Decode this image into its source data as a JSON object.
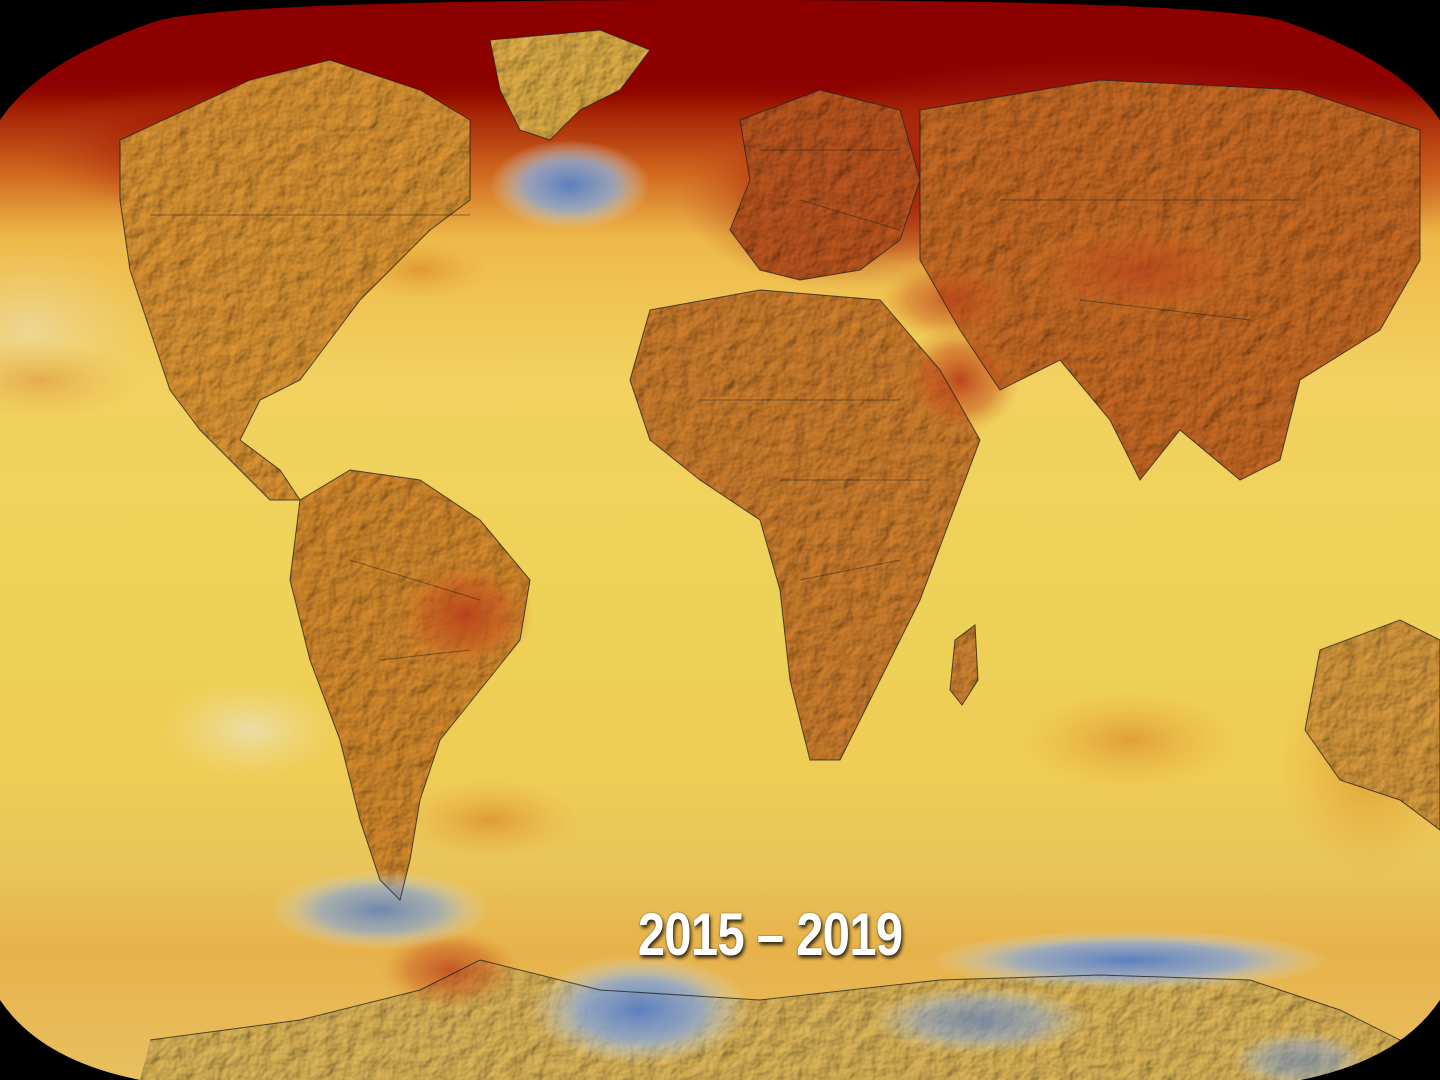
{
  "map": {
    "label": "2015 – 2019",
    "projection": "robinson",
    "colors": {
      "ocean_base": "#f0cf55",
      "warm_mid": "#e8a83a",
      "warm": "#d98a2a",
      "hot": "#c0501c",
      "very_hot": "#8c0000",
      "cool": "#8fa8cf",
      "cold": "#5b7fbf",
      "border": "#1a1a1a",
      "background": "#000000"
    },
    "regions": {
      "arctic": "very_hot",
      "north_atlantic_south_of_greenland": "cold",
      "southern_ocean_near_antarctica": "cold",
      "amazon_basin": "hot",
      "middle_east": "hot",
      "europe_russia": "hot"
    }
  }
}
